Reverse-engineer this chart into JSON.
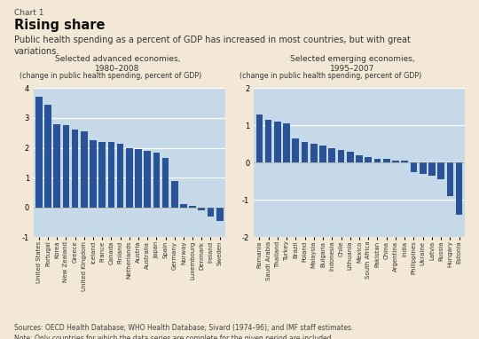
{
  "bg_color": "#f2e8d5",
  "chart_label": "Chart 1",
  "title": "Rising share",
  "subtitle": "Public health spending as a percent of GDP has increased in most countries, but with great\nvariations.",
  "bar_color": "#2a5296",
  "plot_bg_color": "#c5d9e8",
  "grid_color": "#ffffff",
  "left_title": "Selected advanced economies,\n1980–2008",
  "right_title": "Selected emerging economies,\n1995–2007",
  "ylabel": "(change in public health spending, percent of GDP)",
  "source_text": "Sources: OECD Health Database; WHO Health Database; Sivard (1974–96); and IMF staff estimates.\nNote: Only countries for which the data series are complete for the given period are included.",
  "advanced_countries": [
    "United States",
    "Portugal",
    "Korea",
    "New Zealand",
    "Greece",
    "United Kingdom",
    "Iceland",
    "France",
    "Canada",
    "Finland",
    "Netherlands",
    "Austria",
    "Australia",
    "Japan",
    "Spain",
    "Germany",
    "Norway",
    "Luxembourg",
    "Denmark",
    "Ireland",
    "Sweden"
  ],
  "advanced_values": [
    3.7,
    3.45,
    2.8,
    2.75,
    2.6,
    2.55,
    2.25,
    2.2,
    2.2,
    2.15,
    2.0,
    1.95,
    1.9,
    1.85,
    1.65,
    0.9,
    0.1,
    0.05,
    -0.1,
    -0.3,
    -0.45
  ],
  "emerging_countries": [
    "Romania",
    "Saudi Arabia",
    "Thailand",
    "Turkey",
    "Brazil",
    "Poland",
    "Malaysia",
    "Bulgaria",
    "Indonesia",
    "Chile",
    "Lithuania",
    "Mexico",
    "South Africa",
    "Pakistan",
    "China",
    "Argentina",
    "India",
    "Philippines",
    "Ukraine",
    "Latvia",
    "Russia",
    "Hungary",
    "Estonia"
  ],
  "emerging_values": [
    1.3,
    1.15,
    1.1,
    1.05,
    0.65,
    0.55,
    0.5,
    0.45,
    0.4,
    0.35,
    0.3,
    0.2,
    0.15,
    0.1,
    0.1,
    0.05,
    0.05,
    -0.25,
    -0.3,
    -0.35,
    -0.45,
    -0.9,
    -1.4
  ],
  "advanced_ylim": [
    -1,
    4
  ],
  "advanced_yticks": [
    -1,
    0,
    1,
    2,
    3,
    4
  ],
  "emerging_ylim": [
    -2,
    2
  ],
  "emerging_yticks": [
    -2,
    -1,
    0,
    1,
    2
  ]
}
